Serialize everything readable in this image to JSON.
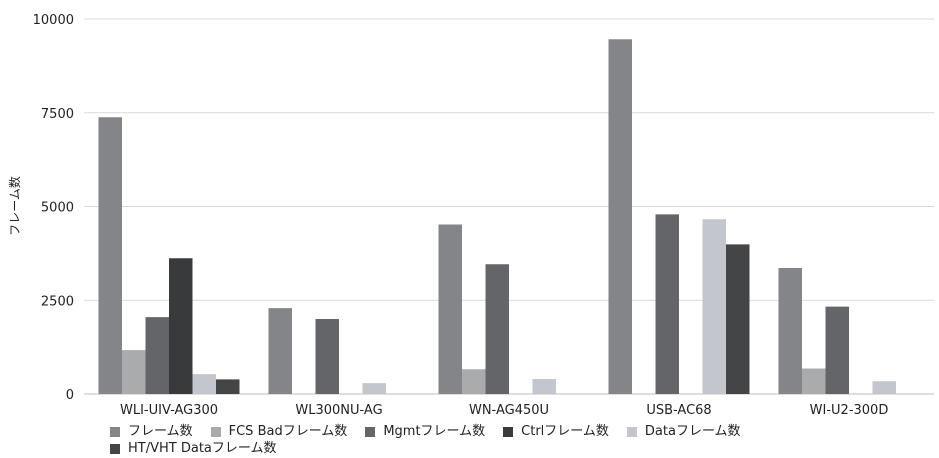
{
  "chart_data": {
    "type": "bar",
    "title": "",
    "xlabel": "",
    "ylabel": "フレーム数",
    "ylim": [
      0,
      10000
    ],
    "yticks": [
      "0",
      "2500",
      "5000",
      "7500",
      "10000"
    ],
    "ytick_values": [
      0,
      2500,
      5000,
      7500,
      10000
    ],
    "grid": true,
    "legend_position": "bottom",
    "categories": [
      "WLI-UIV-AG300",
      "WL300NU-AG",
      "WN-AG450U",
      "USB-AC68",
      "WI-U2-300D"
    ],
    "series": [
      {
        "name": "フレーム数",
        "color": "#838588",
        "values": [
          7380,
          2290,
          4520,
          9460,
          3360
        ]
      },
      {
        "name": "FCS Badフレーム数",
        "color": "#a9abad",
        "values": [
          1170,
          0,
          660,
          0,
          680
        ]
      },
      {
        "name": "Mgmtフレーム数",
        "color": "#646568",
        "values": [
          2050,
          2000,
          3460,
          4790,
          2330
        ]
      },
      {
        "name": "Ctrlフレーム数",
        "color": "#393a3c",
        "values": [
          3620,
          0,
          0,
          0,
          0
        ]
      },
      {
        "name": "Dataフレーム数",
        "color": "#c3c6cc",
        "values": [
          530,
          290,
          400,
          4660,
          340
        ]
      },
      {
        "name": "HT/VHT Dataフレーム数",
        "color": "#444547",
        "values": [
          390,
          0,
          0,
          3990,
          0
        ]
      }
    ]
  }
}
